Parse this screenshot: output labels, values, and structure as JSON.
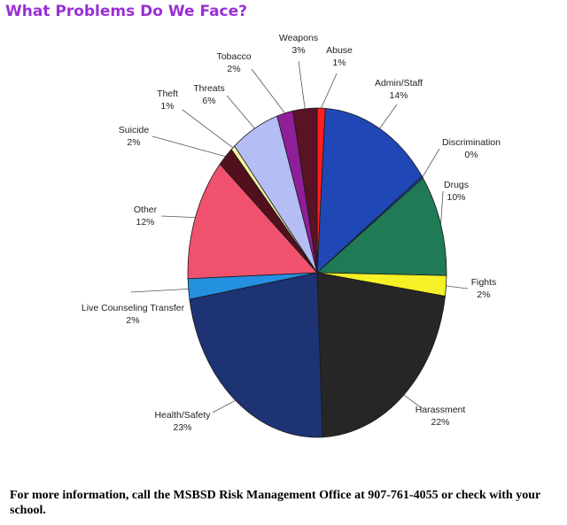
{
  "header": {
    "title": "What Problems Do We Face?"
  },
  "footer": {
    "text": "For more information, call the MSBSD Risk Management Office at 907-761-4055 or check with your school."
  },
  "chart_data": {
    "type": "pie",
    "title": "What Problems Do We Face?",
    "start": "top, clockwise",
    "slices": [
      {
        "name": "Abuse",
        "value": 1,
        "label": "1%",
        "color": "#ff2020"
      },
      {
        "name": "Admin/Staff",
        "value": 14,
        "label": "14%",
        "color": "#1f47b5"
      },
      {
        "name": "Discrimination",
        "value": 0.2,
        "label": "0%",
        "color": "#1f47b5"
      },
      {
        "name": "Drugs",
        "value": 10,
        "label": "10%",
        "color": "#1f7a55"
      },
      {
        "name": "Fights",
        "value": 2,
        "label": "2%",
        "color": "#f4f126"
      },
      {
        "name": "Harassment",
        "value": 22,
        "label": "22%",
        "color": "#262626"
      },
      {
        "name": "Health/Safety",
        "value": 23,
        "label": "23%",
        "color": "#1d3373"
      },
      {
        "name": "Live Counseling Transfer",
        "value": 2,
        "label": "2%",
        "color": "#2390e0"
      },
      {
        "name": "Other",
        "value": 12,
        "label": "12%",
        "color": "#f0526e"
      },
      {
        "name": "Suicide",
        "value": 2,
        "label": "2%",
        "color": "#52101f"
      },
      {
        "name": "Theft",
        "value": 0.5,
        "label": "1%",
        "color": "#f7f4a0"
      },
      {
        "name": "Threats",
        "value": 6,
        "label": "6%",
        "color": "#b4bdf4"
      },
      {
        "name": "Tobacco",
        "value": 2,
        "label": "2%",
        "color": "#8e1f99"
      },
      {
        "name": "Weapons",
        "value": 3,
        "label": "3%",
        "color": "#5a1225"
      }
    ]
  }
}
